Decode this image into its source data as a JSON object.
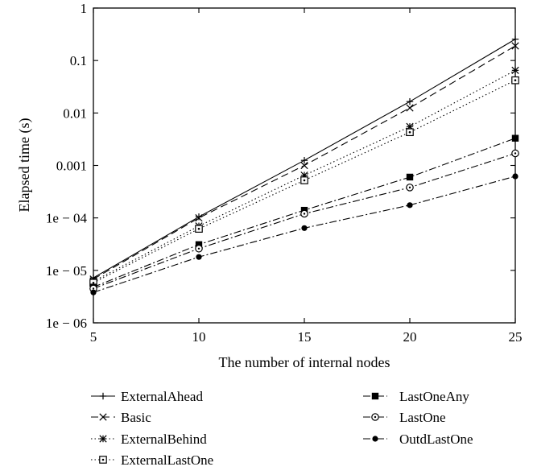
{
  "chart_data": {
    "type": "line",
    "title": "",
    "xlabel": "The number of internal nodes",
    "ylabel": "Elapsed time (s)",
    "x": [
      5,
      10,
      15,
      20,
      25
    ],
    "x_ticks": [
      "5",
      "10",
      "15",
      "20",
      "25"
    ],
    "xlim": [
      5,
      25
    ],
    "y_scale": "log",
    "ylim": [
      1e-06,
      1
    ],
    "y_ticks": [
      {
        "value": 1,
        "label": "1"
      },
      {
        "value": 0.1,
        "label": "0.1"
      },
      {
        "value": 0.01,
        "label": "0.01"
      },
      {
        "value": 0.001,
        "label": "0.001"
      },
      {
        "value": 0.0001,
        "label": "1e − 04"
      },
      {
        "value": 1e-05,
        "label": "1e − 05"
      },
      {
        "value": 1e-06,
        "label": "1e − 06"
      }
    ],
    "grid": false,
    "legend_position": "below",
    "series": [
      {
        "name": "ExternalAhead",
        "line": "solid",
        "marker": "plus",
        "values": [
          7.2e-06,
          0.000105,
          0.00125,
          0.0165,
          0.255
        ]
      },
      {
        "name": "Basic",
        "line": "dashed",
        "marker": "x",
        "values": [
          6.8e-06,
          0.0001,
          0.001,
          0.0125,
          0.19
        ]
      },
      {
        "name": "ExternalBehind",
        "line": "dotted",
        "marker": "asterisk",
        "values": [
          6.2e-06,
          7e-05,
          0.00065,
          0.0055,
          0.065
        ]
      },
      {
        "name": "ExternalLastOne",
        "line": "dotted",
        "marker": "square-dot",
        "values": [
          5.8e-06,
          6.2e-05,
          0.00052,
          0.0043,
          0.042
        ]
      },
      {
        "name": "LastOneAny",
        "line": "dashdot",
        "marker": "filled-square",
        "values": [
          4.8e-06,
          3.1e-05,
          0.00014,
          0.0006,
          0.0033
        ]
      },
      {
        "name": "LastOne",
        "line": "dashdot",
        "marker": "open-circle",
        "values": [
          4.5e-06,
          2.6e-05,
          0.00012,
          0.00038,
          0.0017
        ]
      },
      {
        "name": "OutdLastOne",
        "line": "dashdot",
        "marker": "filled-circle",
        "values": [
          3.8e-06,
          1.8e-05,
          6.4e-05,
          0.000175,
          0.00062
        ]
      }
    ],
    "color": "#000000"
  }
}
